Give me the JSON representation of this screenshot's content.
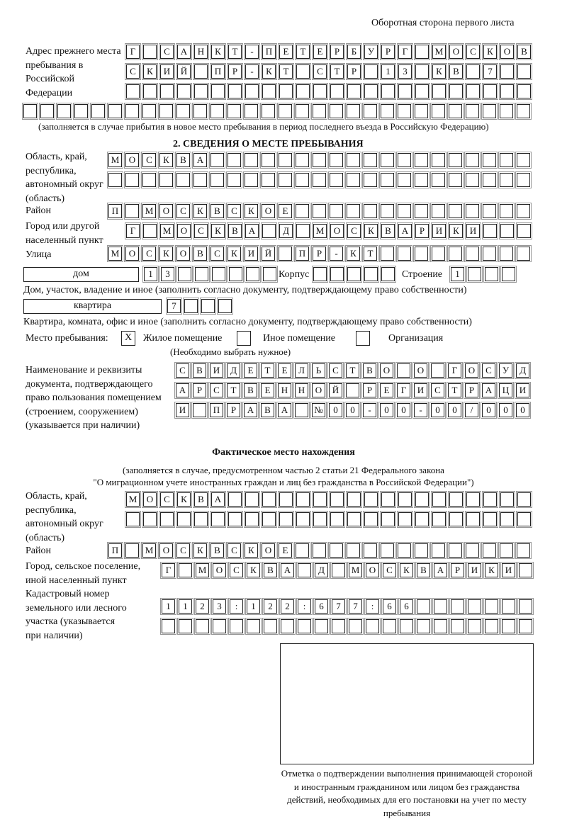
{
  "header": "Оборотная сторона первого листа",
  "previous_address": {
    "label": "Адрес прежнего места пребывания в Российской Федерации",
    "rows": [
      "Г САНКТ-ПЕТЕРБУРГ МОСКОВ",
      "СКИЙ ПР-КТ СТР 13 КВ 7  ",
      "                        ",
      "                              "
    ],
    "note": "(заполняется в случае прибытия в новое место пребывания в период последнего въезда в Российскую Федерацию)"
  },
  "section2": {
    "title": "2. СВЕДЕНИЯ О МЕСТЕ ПРЕБЫВАНИЯ",
    "region_label": "Область, край, республика, автономный округ (область)",
    "region_rows": [
      "МОСКВА                   ",
      "                         "
    ],
    "district_label": "Район",
    "district_row": "П МОСКВСКОЕ              ",
    "city_label": "Город или другой населенный пункт",
    "city_row": "Г МОСКВА Д МОСКВАРИКИ   ",
    "street_label": "Улица",
    "street_row": "МОСКОВСКИЙ ПР-КТ         ",
    "house_type": "дом",
    "house_row": "13      ",
    "korpus_label": "Корпус",
    "korpus_row": "     ",
    "building_label": "Строение",
    "building_row": "1   ",
    "house_note": "Дом, участок, владение и иное (заполнить согласно документу, подтверждающему право собственности)",
    "flat_type": "квартира",
    "flat_row": "7   ",
    "flat_note": "Квартира, комната, офис и иное (заполнить согласно документу, подтверждающему право собственности)",
    "stay_label": "Место пребывания:",
    "stay_options": [
      {
        "label": "Жилое помещение",
        "mark": "X"
      },
      {
        "label": "Иное помещение",
        "mark": ""
      },
      {
        "label": "Организация",
        "mark": ""
      }
    ],
    "stay_note": "(Необходимо выбрать нужное)",
    "doc_label": "Наименование и реквизиты документа, подтверждающего право пользования помещением (строением, сооружением) (указывается при наличии)",
    "doc_rows": [
      "СВИДЕТЕЛЬСТВО О ГОСУД",
      "АРСТВЕННОЙ РЕГИСТРАЦИ",
      "И ПРАВА №00-00-00/000"
    ]
  },
  "actual": {
    "title": "Фактическое место нахождения",
    "note1": "(заполняется в случае, предусмотренном частью 2 статьи 21 Федерального закона",
    "note2": "\"О миграционном учете иностранных граждан и лиц без гражданства в Российской Федерации\")",
    "region_label": "Область, край, республика, автономный округ (область)",
    "region_rows": [
      "МОСКВА                  ",
      "                        "
    ],
    "district_label": "Район",
    "district_row": "П МОСКВСКОЕ              ",
    "city_label": "Город, сельское поселение, иной населенный пункт",
    "city_row": "Г МОСКВА Д МОСКВАРИКИ ",
    "cadastral_label": "Кадастровый номер земельного или лесного участка (указывается при наличии)",
    "cadastral_rows": [
      "1123:122:677:66       ",
      "                      "
    ]
  },
  "confirmation_caption": "Отметка о подтверждении выполнения принимающей стороной и иностранным гражданином или лицом без гражданства действий, необходимых для его постановки на учет по месту пребывания"
}
